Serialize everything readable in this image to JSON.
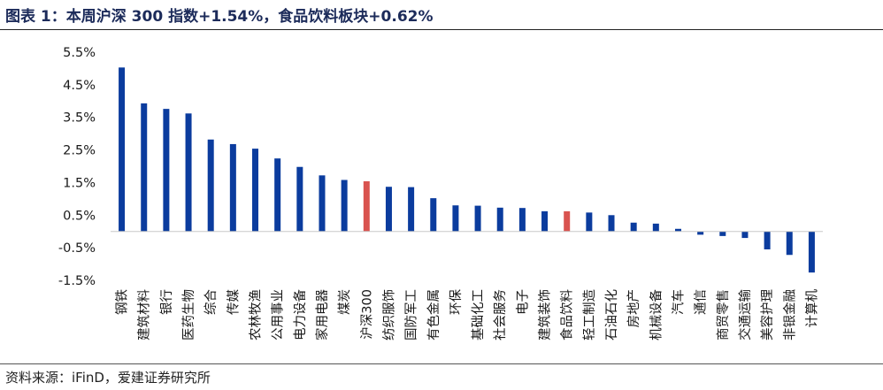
{
  "header": {
    "title": "图表 1：本周沪深 300 指数+1.54%，食品饮料板块+0.62%"
  },
  "footer": {
    "source": "资料来源：iFinD，爱建证券研究所"
  },
  "chart_data": {
    "type": "bar",
    "title": "",
    "xlabel": "",
    "ylabel": "",
    "ylim": [
      -1.5,
      5.5
    ],
    "yticks": [
      "5.5%",
      "4.5%",
      "3.5%",
      "2.5%",
      "1.5%",
      "0.5%",
      "-0.5%",
      "-1.5%"
    ],
    "ytick_values": [
      5.5,
      4.5,
      3.5,
      2.5,
      1.5,
      0.5,
      -0.5,
      -1.5
    ],
    "colors": {
      "default": "#0b3c9e",
      "highlight": "#d9534f"
    },
    "highlight": [
      "沪深300",
      "食品饮料"
    ],
    "categories": [
      "钢铁",
      "建筑材料",
      "银行",
      "医药生物",
      "综合",
      "传媒",
      "农林牧渔",
      "公用事业",
      "电力设备",
      "家用电器",
      "煤炭",
      "沪深300",
      "纺织服饰",
      "国防军工",
      "有色金属",
      "环保",
      "基础化工",
      "社会服务",
      "电子",
      "建筑装饰",
      "食品饮料",
      "轻工制造",
      "石油石化",
      "房地产",
      "机械设备",
      "汽车",
      "通信",
      "商贸零售",
      "交通运输",
      "美容护理",
      "非银金融",
      "计算机"
    ],
    "values": [
      5.03,
      3.93,
      3.76,
      3.62,
      2.82,
      2.68,
      2.54,
      2.24,
      1.98,
      1.72,
      1.58,
      1.54,
      1.37,
      1.36,
      1.02,
      0.8,
      0.79,
      0.73,
      0.72,
      0.62,
      0.62,
      0.58,
      0.5,
      0.27,
      0.24,
      0.08,
      -0.1,
      -0.14,
      -0.2,
      -0.55,
      -0.72,
      -1.26
    ]
  }
}
